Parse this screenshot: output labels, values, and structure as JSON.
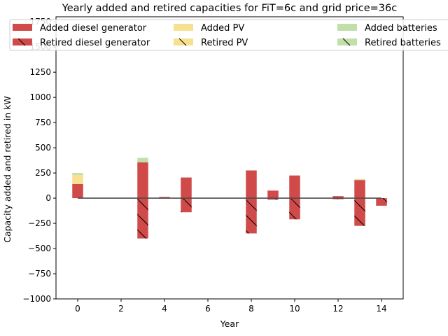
{
  "chart_data": {
    "type": "bar",
    "title": "Yearly added and retired capacities for FiT=6c and grid price=36c",
    "xlabel": "Year",
    "ylabel": "Capacity added and retired in kW",
    "xlim": [
      -1,
      15
    ],
    "ylim": [
      -1000,
      1800
    ],
    "xticks": [
      0,
      2,
      4,
      6,
      8,
      10,
      12,
      14
    ],
    "yticks": [
      -1000,
      -750,
      -500,
      -250,
      0,
      250,
      500,
      750,
      1000,
      1250,
      1500,
      1750
    ],
    "grid": false,
    "legend_placement": "top, 3 columns",
    "years": [
      0,
      1,
      2,
      3,
      4,
      5,
      6,
      7,
      8,
      9,
      10,
      11,
      12,
      13,
      14
    ],
    "series": [
      {
        "name": "Added diesel generator",
        "kind": "added",
        "color": "#d04a4a",
        "values": [
          140,
          0,
          0,
          355,
          12,
          205,
          0,
          0,
          275,
          75,
          225,
          0,
          20,
          180,
          0
        ]
      },
      {
        "name": "Added PV",
        "kind": "added",
        "color": "#f7e08f",
        "values": [
          90,
          0,
          0,
          0,
          0,
          0,
          0,
          0,
          0,
          0,
          0,
          0,
          0,
          5,
          0
        ]
      },
      {
        "name": "Added batteries",
        "kind": "added",
        "color": "#c2dfa9",
        "values": [
          20,
          0,
          0,
          45,
          0,
          0,
          0,
          0,
          0,
          0,
          0,
          0,
          0,
          5,
          0
        ]
      },
      {
        "name": "Retired diesel generator",
        "kind": "retired",
        "color": "#d04a4a",
        "values": [
          0,
          0,
          0,
          -400,
          0,
          -140,
          0,
          0,
          -350,
          -15,
          -210,
          0,
          -10,
          -275,
          -75
        ]
      },
      {
        "name": "Retired PV",
        "kind": "retired",
        "color": "#f7e08f",
        "values": [
          0,
          0,
          0,
          0,
          0,
          0,
          0,
          0,
          0,
          0,
          0,
          0,
          0,
          0,
          0
        ]
      },
      {
        "name": "Retired batteries",
        "kind": "retired",
        "color": "#c2dfa9",
        "values": [
          0,
          0,
          0,
          0,
          0,
          0,
          0,
          0,
          0,
          0,
          0,
          0,
          0,
          0,
          0
        ]
      }
    ],
    "net_line": {
      "color": "#4d4d4d",
      "values": [
        0,
        0,
        0,
        0,
        0,
        0,
        0,
        0,
        0,
        0,
        0,
        0,
        0,
        0,
        0
      ]
    }
  }
}
